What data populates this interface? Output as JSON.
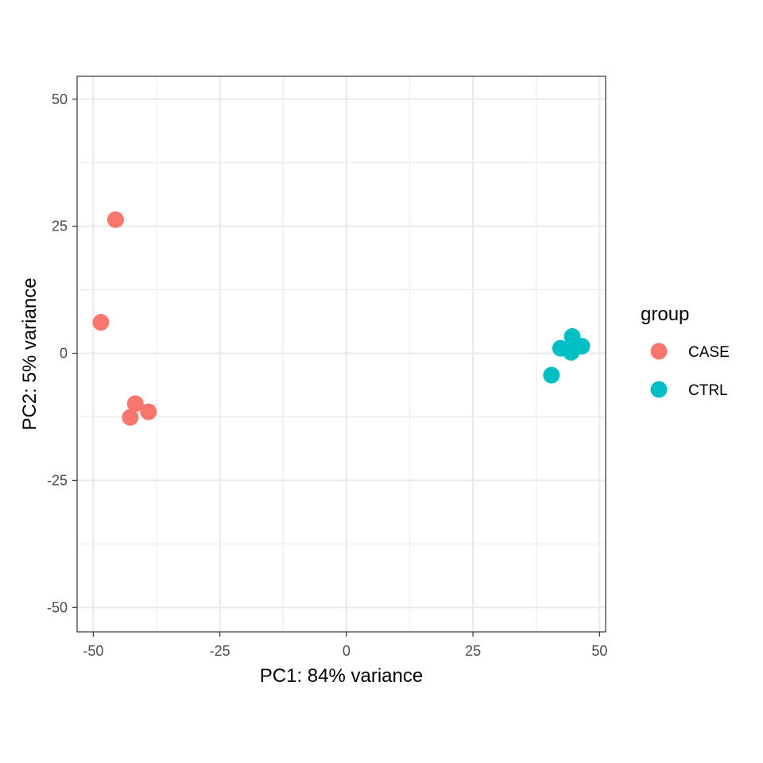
{
  "chart_data": {
    "type": "scatter",
    "title": "",
    "xlabel": "PC1: 84% variance",
    "ylabel": "PC2: 5% variance",
    "xlim": [
      -53.2,
      51.2
    ],
    "ylim": [
      -54.8,
      54.5
    ],
    "x_ticks": [
      -50,
      -25,
      0,
      25,
      50
    ],
    "y_ticks": [
      -50,
      -25,
      0,
      25,
      50
    ],
    "x_tick_labels": [
      "-50",
      "-25",
      "0",
      "25",
      "50"
    ],
    "y_tick_labels": [
      "-50",
      "-25",
      "0",
      "25",
      "50"
    ],
    "grid": true,
    "legend": {
      "title": "group",
      "placement": "right",
      "entries": [
        "CASE",
        "CTRL"
      ]
    },
    "series": [
      {
        "name": "CASE",
        "color": "#F8766D",
        "points": [
          {
            "x": -45.6,
            "y": 26.3
          },
          {
            "x": -48.5,
            "y": 6.1
          },
          {
            "x": -41.7,
            "y": -9.9
          },
          {
            "x": -42.7,
            "y": -12.6
          },
          {
            "x": -39.1,
            "y": -11.5
          }
        ]
      },
      {
        "name": "CTRL",
        "color": "#00BFC4",
        "points": [
          {
            "x": 44.6,
            "y": 3.3
          },
          {
            "x": 42.3,
            "y": 1.0
          },
          {
            "x": 46.5,
            "y": 1.4
          },
          {
            "x": 44.4,
            "y": 0.2
          },
          {
            "x": 40.5,
            "y": -4.3
          }
        ]
      }
    ]
  }
}
